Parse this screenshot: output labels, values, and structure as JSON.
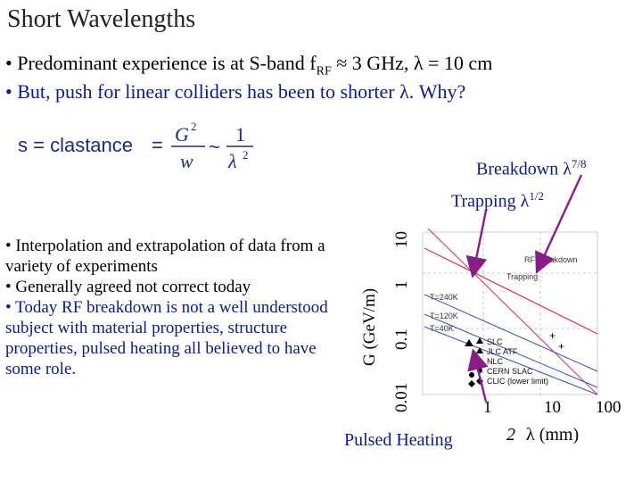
{
  "slide": {
    "title": "Short Wavelengths",
    "bullets": [
      "• Predominant experience is at S-band f",
      "• But, push for linear colliders has been to shorter λ.  Why?"
    ],
    "bullet1_sub": "RF",
    "bullet1_rest": " ≈ 3 GHz, λ = 10 cm",
    "formula": {
      "lhs": "s = clastance",
      "eq": "=",
      "num1": "G",
      "num1_exp": "2",
      "den1": "w",
      "approx": "~",
      "num2": "1",
      "den2": "λ",
      "den2_exp": "2"
    },
    "annotations": {
      "breakdown": "Breakdown λ",
      "breakdown_exp": "7/8",
      "trapping": "Trapping λ",
      "trapping_exp": "1/2",
      "pulsed_heating": "Pulsed Heating"
    },
    "notes": [
      {
        "text": "• Interpolation and extrapolation of data from a variety of experiments",
        "color": "black"
      },
      {
        "text": "• Generally agreed not correct today",
        "color": "black"
      },
      {
        "text": "• Today RF breakdown is not a well understood subject with material properties, structure properties, pulsed heating all believed to have some role.",
        "color": "blue"
      }
    ]
  },
  "chart_data": {
    "type": "line",
    "ylabel": "G (GeV/m)",
    "xlabel": "λ (mm)",
    "xlabel_prefix": "2",
    "x_ticks": [
      "1",
      "10",
      "100"
    ],
    "y_ticks": [
      "0.01",
      "0.1",
      "1",
      "10"
    ],
    "xscale": "log",
    "yscale": "log",
    "inner_labels": {
      "rf_breakdown": "RF Breakdown",
      "trapping": "Trapping",
      "t240": "T=240K",
      "t120": "T=120K",
      "t40": "T=40K"
    },
    "legend": [
      "SLC",
      "JLC ATF",
      "NLC",
      "CERN SLAC",
      "CLIC (lower limit)"
    ],
    "colors": {
      "breakdown": "#d9334c",
      "trapping": "#d24a6a",
      "temperature": "#2f4fbf",
      "arrow": "#8a1c8a",
      "text_blue": "#0b1b8a"
    }
  }
}
